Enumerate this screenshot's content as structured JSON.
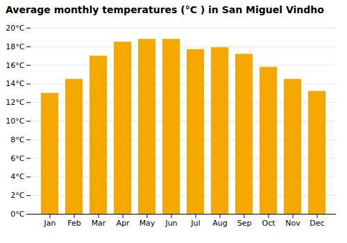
{
  "chart_data": {
    "type": "bar",
    "title": "Average monthly temperatures (°C ) in San Miguel Vindho",
    "categories": [
      "Jan",
      "Feb",
      "Mar",
      "Apr",
      "May",
      "Jun",
      "Jul",
      "Aug",
      "Sep",
      "Oct",
      "Nov",
      "Dec"
    ],
    "values": [
      13.0,
      14.5,
      17.0,
      18.5,
      18.8,
      18.8,
      17.7,
      17.9,
      17.2,
      15.8,
      14.5,
      13.2
    ],
    "color": "#F5A800",
    "ylim": [
      0,
      20
    ],
    "yticks": [
      {
        "value": 0,
        "label": "0°C"
      },
      {
        "value": 2,
        "label": "2°C"
      },
      {
        "value": 4,
        "label": "4°C"
      },
      {
        "value": 6,
        "label": "6°C"
      },
      {
        "value": 8,
        "label": "8°C"
      },
      {
        "value": 10,
        "label": "10°C"
      },
      {
        "value": 12,
        "label": "12°C"
      },
      {
        "value": 14,
        "label": "14°C"
      },
      {
        "value": 16,
        "label": "16°C"
      },
      {
        "value": 18,
        "label": "18°C"
      },
      {
        "value": 20,
        "label": "20°C"
      }
    ],
    "grid": true
  }
}
